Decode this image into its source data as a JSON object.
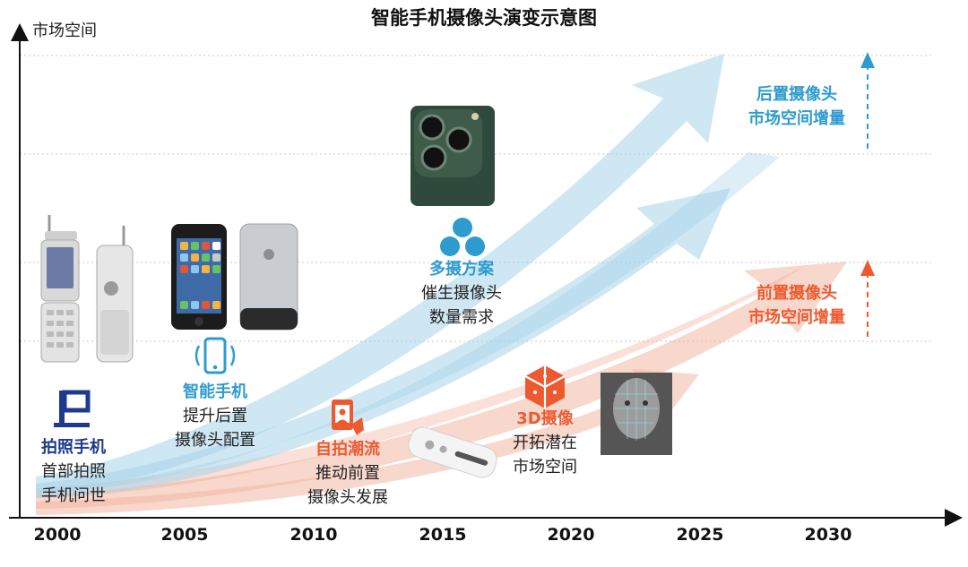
{
  "title": "智能手机摄像头演变示意图",
  "y_axis_label": "市场空间",
  "x_axis_years": [
    "2000",
    "2005",
    "2010",
    "2015",
    "2020",
    "2025",
    "2030"
  ],
  "colors": {
    "blue_text": "#2e9bcf",
    "red_text": "#ee5a2f",
    "navy_text": "#1d3a8c",
    "blue_band": "#a6d4ea",
    "red_band": "#f3b6a3"
  },
  "milestones": {
    "photo_phone": {
      "heading": "拍照手机",
      "line1": "首部拍照",
      "line2": "手机问世"
    },
    "smartphone": {
      "heading": "智能手机",
      "line1": "提升后置",
      "line2": "摄像头配置"
    },
    "selfie": {
      "heading": "自拍潮流",
      "line1": "推动前置",
      "line2": "摄像头发展"
    },
    "multi_camera": {
      "heading": "多摄方案",
      "line1": "催生摄像头",
      "line2": "数量需求"
    },
    "camera_3d": {
      "heading": "3D摄像",
      "line1": "开拓潜在",
      "line2": "市场空间"
    }
  },
  "rear_increment": {
    "line1": "后置摄像头",
    "line2": "市场空间增量"
  },
  "front_increment": {
    "line1": "前置摄像头",
    "line2": "市场空间增量"
  }
}
